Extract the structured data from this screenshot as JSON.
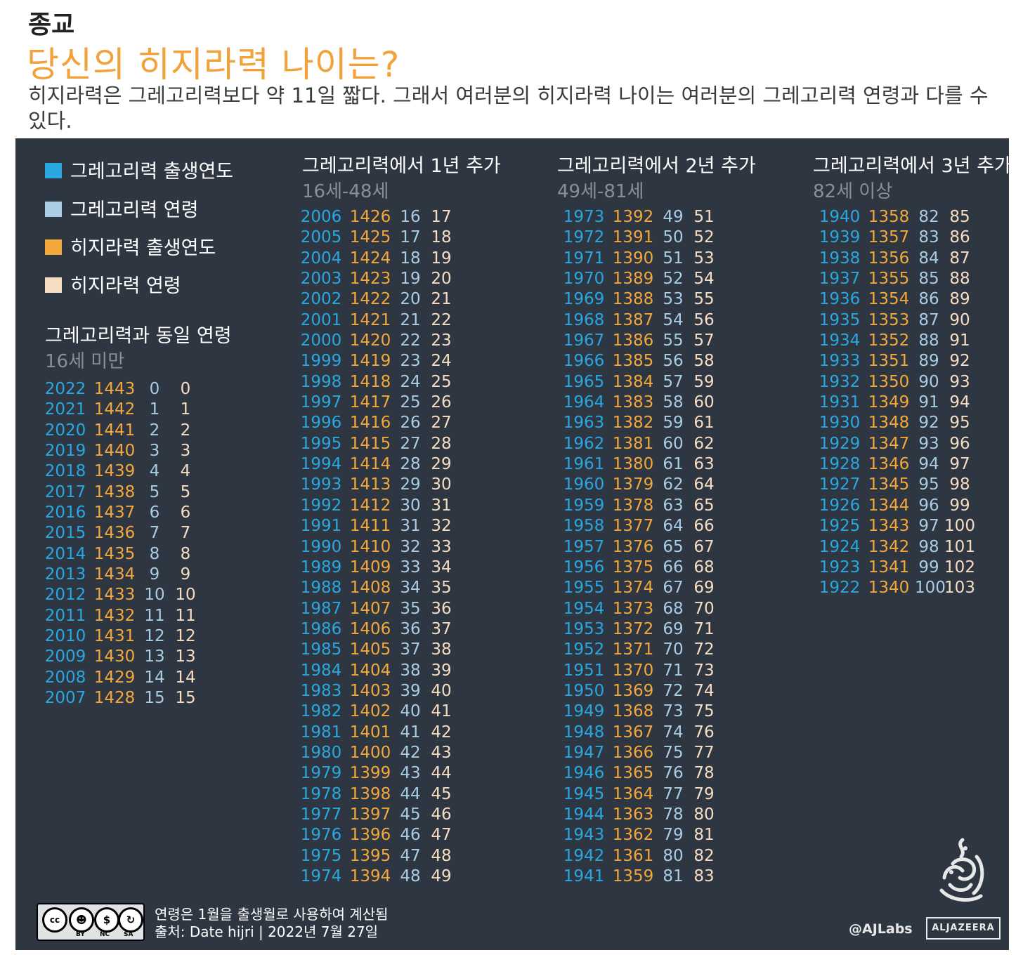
{
  "header": {
    "category": "종교",
    "title": "당신의 히지라력 나이는?",
    "subtitle": "히지라력은 그레고리력보다 약 11일 짧다. 그래서 여러분의 히지라력 나이는 여러분의 그레고리력 연령과 다를 수 있다."
  },
  "colors": {
    "panel_bg": "#2e3642",
    "gregorian_year": "#29a7e1",
    "gregorian_age": "#a8cde4",
    "hijri_year": "#f4a73a",
    "hijri_age": "#f6dcc1",
    "title": "#f2a23a"
  },
  "legend": [
    {
      "label": "그레고리력 출생연도",
      "color": "#29a7e1"
    },
    {
      "label": "그레고리력 연령",
      "color": "#a8cde4"
    },
    {
      "label": "히지라력 출생연도",
      "color": "#f4a73a"
    },
    {
      "label": "히지라력 연령",
      "color": "#f6dcc1"
    }
  ],
  "columns": [
    {
      "title": "그레고리력과 동일 연령",
      "subtitle": "16세 미만",
      "rows": [
        [
          "2022",
          "1443",
          "0",
          "0"
        ],
        [
          "2021",
          "1442",
          "1",
          "1"
        ],
        [
          "2020",
          "1441",
          "2",
          "2"
        ],
        [
          "2019",
          "1440",
          "3",
          "3"
        ],
        [
          "2018",
          "1439",
          "4",
          "4"
        ],
        [
          "2017",
          "1438",
          "5",
          "5"
        ],
        [
          "2016",
          "1437",
          "6",
          "6"
        ],
        [
          "2015",
          "1436",
          "7",
          "7"
        ],
        [
          "2014",
          "1435",
          "8",
          "8"
        ],
        [
          "2013",
          "1434",
          "9",
          "9"
        ],
        [
          "2012",
          "1433",
          "10",
          "10"
        ],
        [
          "2011",
          "1432",
          "11",
          "11"
        ],
        [
          "2010",
          "1431",
          "12",
          "12"
        ],
        [
          "2009",
          "1430",
          "13",
          "13"
        ],
        [
          "2008",
          "1429",
          "14",
          "14"
        ],
        [
          "2007",
          "1428",
          "15",
          "15"
        ]
      ]
    },
    {
      "title": "그레고리력에서 1년 추가",
      "subtitle": "16세-48세",
      "rows": [
        [
          "2006",
          "1426",
          "16",
          "17"
        ],
        [
          "2005",
          "1425",
          "17",
          "18"
        ],
        [
          "2004",
          "1424",
          "18",
          "19"
        ],
        [
          "2003",
          "1423",
          "19",
          "20"
        ],
        [
          "2002",
          "1422",
          "20",
          "21"
        ],
        [
          "2001",
          "1421",
          "21",
          "22"
        ],
        [
          "2000",
          "1420",
          "22",
          "23"
        ],
        [
          "1999",
          "1419",
          "23",
          "24"
        ],
        [
          "1998",
          "1418",
          "24",
          "25"
        ],
        [
          "1997",
          "1417",
          "25",
          "26"
        ],
        [
          "1996",
          "1416",
          "26",
          "27"
        ],
        [
          "1995",
          "1415",
          "27",
          "28"
        ],
        [
          "1994",
          "1414",
          "28",
          "29"
        ],
        [
          "1993",
          "1413",
          "29",
          "30"
        ],
        [
          "1992",
          "1412",
          "30",
          "31"
        ],
        [
          "1991",
          "1411",
          "31",
          "32"
        ],
        [
          "1990",
          "1410",
          "32",
          "33"
        ],
        [
          "1989",
          "1409",
          "33",
          "34"
        ],
        [
          "1988",
          "1408",
          "34",
          "35"
        ],
        [
          "1987",
          "1407",
          "35",
          "36"
        ],
        [
          "1986",
          "1406",
          "36",
          "37"
        ],
        [
          "1985",
          "1405",
          "37",
          "38"
        ],
        [
          "1984",
          "1404",
          "38",
          "39"
        ],
        [
          "1983",
          "1403",
          "39",
          "40"
        ],
        [
          "1982",
          "1402",
          "40",
          "41"
        ],
        [
          "1981",
          "1401",
          "41",
          "42"
        ],
        [
          "1980",
          "1400",
          "42",
          "43"
        ],
        [
          "1979",
          "1399",
          "43",
          "44"
        ],
        [
          "1978",
          "1398",
          "44",
          "45"
        ],
        [
          "1977",
          "1397",
          "45",
          "46"
        ],
        [
          "1976",
          "1396",
          "46",
          "47"
        ],
        [
          "1975",
          "1395",
          "47",
          "48"
        ],
        [
          "1974",
          "1394",
          "48",
          "49"
        ]
      ]
    },
    {
      "title": "그레고리력에서 2년 추가",
      "subtitle": "49세-81세",
      "rows": [
        [
          "1973",
          "1392",
          "49",
          "51"
        ],
        [
          "1972",
          "1391",
          "50",
          "52"
        ],
        [
          "1971",
          "1390",
          "51",
          "53"
        ],
        [
          "1970",
          "1389",
          "52",
          "54"
        ],
        [
          "1969",
          "1388",
          "53",
          "55"
        ],
        [
          "1968",
          "1387",
          "54",
          "56"
        ],
        [
          "1967",
          "1386",
          "55",
          "57"
        ],
        [
          "1966",
          "1385",
          "56",
          "58"
        ],
        [
          "1965",
          "1384",
          "57",
          "59"
        ],
        [
          "1964",
          "1383",
          "58",
          "60"
        ],
        [
          "1963",
          "1382",
          "59",
          "61"
        ],
        [
          "1962",
          "1381",
          "60",
          "62"
        ],
        [
          "1961",
          "1380",
          "61",
          "63"
        ],
        [
          "1960",
          "1379",
          "62",
          "64"
        ],
        [
          "1959",
          "1378",
          "63",
          "65"
        ],
        [
          "1958",
          "1377",
          "64",
          "66"
        ],
        [
          "1957",
          "1376",
          "65",
          "67"
        ],
        [
          "1956",
          "1375",
          "66",
          "68"
        ],
        [
          "1955",
          "1374",
          "67",
          "69"
        ],
        [
          "1954",
          "1373",
          "68",
          "70"
        ],
        [
          "1953",
          "1372",
          "69",
          "71"
        ],
        [
          "1952",
          "1371",
          "70",
          "72"
        ],
        [
          "1951",
          "1370",
          "71",
          "73"
        ],
        [
          "1950",
          "1369",
          "72",
          "74"
        ],
        [
          "1949",
          "1368",
          "73",
          "75"
        ],
        [
          "1948",
          "1367",
          "74",
          "76"
        ],
        [
          "1947",
          "1366",
          "75",
          "77"
        ],
        [
          "1946",
          "1365",
          "76",
          "78"
        ],
        [
          "1945",
          "1364",
          "77",
          "79"
        ],
        [
          "1944",
          "1363",
          "78",
          "80"
        ],
        [
          "1943",
          "1362",
          "79",
          "81"
        ],
        [
          "1942",
          "1361",
          "80",
          "82"
        ],
        [
          "1941",
          "1359",
          "81",
          "83"
        ]
      ]
    },
    {
      "title": "그레고리력에서 3년 추가",
      "subtitle": "82세 이상",
      "rows": [
        [
          "1940",
          "1358",
          "82",
          "85"
        ],
        [
          "1939",
          "1357",
          "83",
          "86"
        ],
        [
          "1938",
          "1356",
          "84",
          "87"
        ],
        [
          "1937",
          "1355",
          "85",
          "88"
        ],
        [
          "1936",
          "1354",
          "86",
          "89"
        ],
        [
          "1935",
          "1353",
          "87",
          "90"
        ],
        [
          "1934",
          "1352",
          "88",
          "91"
        ],
        [
          "1933",
          "1351",
          "89",
          "92"
        ],
        [
          "1932",
          "1350",
          "90",
          "93"
        ],
        [
          "1931",
          "1349",
          "91",
          "94"
        ],
        [
          "1930",
          "1348",
          "92",
          "95"
        ],
        [
          "1929",
          "1347",
          "93",
          "96"
        ],
        [
          "1928",
          "1346",
          "94",
          "97"
        ],
        [
          "1927",
          "1345",
          "95",
          "98"
        ],
        [
          "1926",
          "1344",
          "96",
          "99"
        ],
        [
          "1925",
          "1343",
          "97",
          "100"
        ],
        [
          "1924",
          "1342",
          "98",
          "101"
        ],
        [
          "1923",
          "1341",
          "99",
          "102"
        ],
        [
          "1922",
          "1340",
          "100",
          "103"
        ]
      ]
    }
  ],
  "footer": {
    "note": "연령은 1월을 출생월로 사용하여 계산됨",
    "source": "출처: Date hijri |   2022년 7월 27일",
    "license_tags": [
      "BY",
      "NC",
      "SA"
    ],
    "credit": "@AJLabs",
    "brand": "ALJAZEERA"
  }
}
